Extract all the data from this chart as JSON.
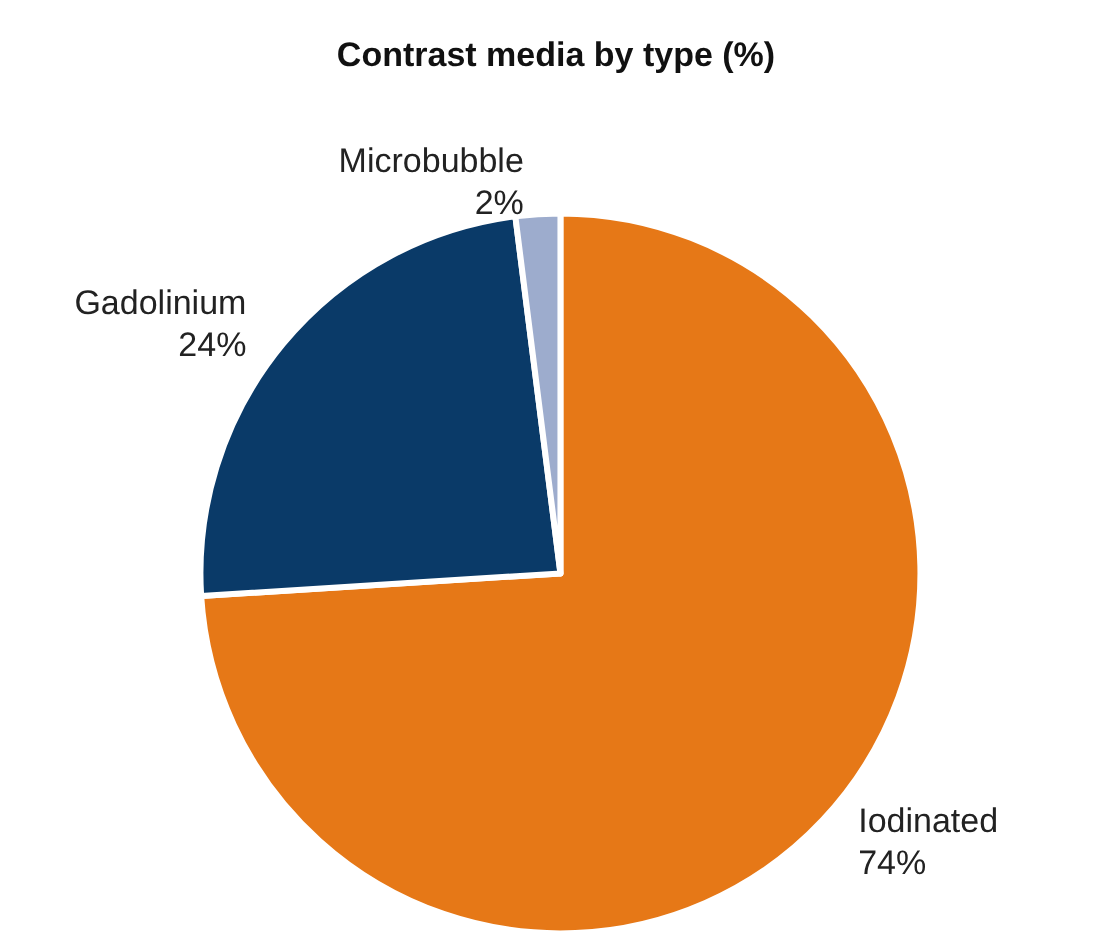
{
  "chart_data": {
    "type": "pie",
    "title": "Contrast media by type (%)",
    "categories": [
      "Iodinated",
      "Gadolinium",
      "Microbubble"
    ],
    "values": [
      74,
      24,
      2
    ],
    "value_labels": [
      "74%",
      "24%",
      "2%"
    ],
    "colors": [
      "#e67817",
      "#0a3a68",
      "#9daccd"
    ],
    "legend": false
  }
}
